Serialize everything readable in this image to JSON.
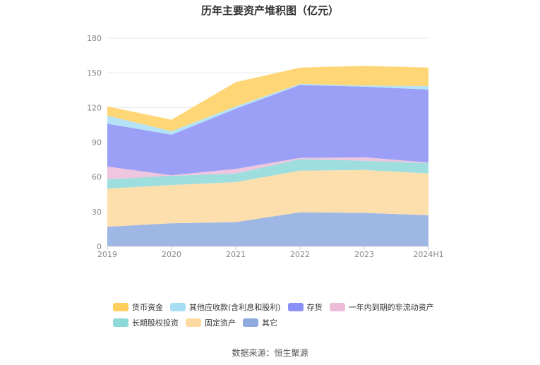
{
  "chart_data": {
    "type": "area",
    "stacked": true,
    "title": "历年主要资产堆积图（亿元）",
    "categories": [
      "2019",
      "2020",
      "2021",
      "2022",
      "2023",
      "2024H1"
    ],
    "ylim": [
      0,
      180
    ],
    "yticks": [
      0,
      30,
      60,
      90,
      120,
      150,
      180
    ],
    "grid": true,
    "legend_position": "bottom",
    "series": [
      {
        "name": "其它",
        "color": "#8eaadf",
        "values": [
          17,
          20,
          21,
          29.5,
          29,
          27
        ]
      },
      {
        "name": "固定资产",
        "color": "#fdd9a0",
        "values": [
          33,
          33,
          34.5,
          36,
          37,
          36
        ]
      },
      {
        "name": "长期股权投资",
        "color": "#8dd8d8",
        "values": [
          8,
          8,
          7.5,
          10,
          8,
          9
        ]
      },
      {
        "name": "一年内到期的非流动资产",
        "color": "#ecbcd9",
        "values": [
          11,
          0.5,
          4,
          1,
          3,
          0.5
        ]
      },
      {
        "name": "存货",
        "color": "#8a8ff5",
        "values": [
          37,
          35,
          52,
          63,
          61,
          63
        ]
      },
      {
        "name": "其他应收款(含利息和股利)",
        "color": "#a7def5",
        "values": [
          7,
          3,
          2,
          1,
          1,
          3
        ]
      },
      {
        "name": "货币资金",
        "color": "#ffcf5e",
        "values": [
          8,
          10,
          21,
          14,
          17,
          16
        ]
      }
    ],
    "legend_order": [
      "货币资金",
      "其他应收款(含利息和股利)",
      "存货",
      "一年内到期的非流动资产",
      "长期股权投资",
      "固定资产",
      "其它"
    ]
  },
  "source": "数据来源：恒生聚源"
}
